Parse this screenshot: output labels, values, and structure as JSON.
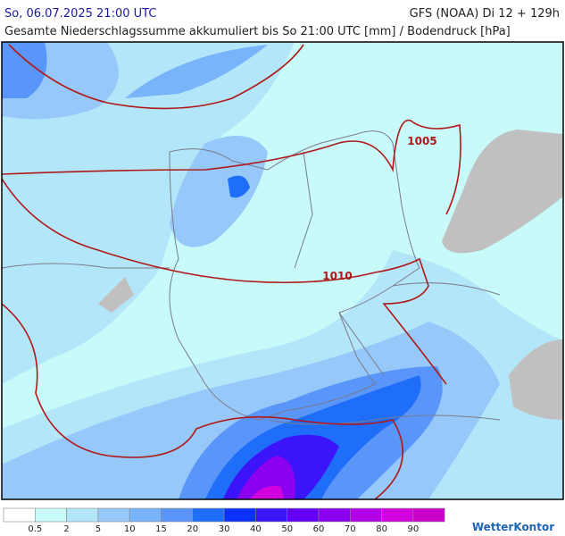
{
  "header": {
    "left": "So, 06.07.2025 21:00 UTC",
    "right": "GFS (NOAA) Di 12 + 129h",
    "subtitle": "Gesamte Niederschlagssumme akkumuliert bis So 21:00 UTC [mm] / Bodendruck [hPa]"
  },
  "map": {
    "isobar_labels": [
      "1005",
      "1010"
    ]
  },
  "legend": {
    "colors": [
      "#ffffff",
      "#c8fafa",
      "#b4e6fa",
      "#96c8fa",
      "#78b4fa",
      "#5a96fa",
      "#1e6efa",
      "#0a32fa",
      "#3c14fa",
      "#6400fa",
      "#8c00f0",
      "#b400e6",
      "#d200dc",
      "#c800c8"
    ],
    "labels": [
      0.5,
      2,
      5,
      10,
      15,
      20,
      30,
      40,
      50,
      60,
      70,
      80,
      90
    ]
  },
  "logo": "WetterKontor"
}
